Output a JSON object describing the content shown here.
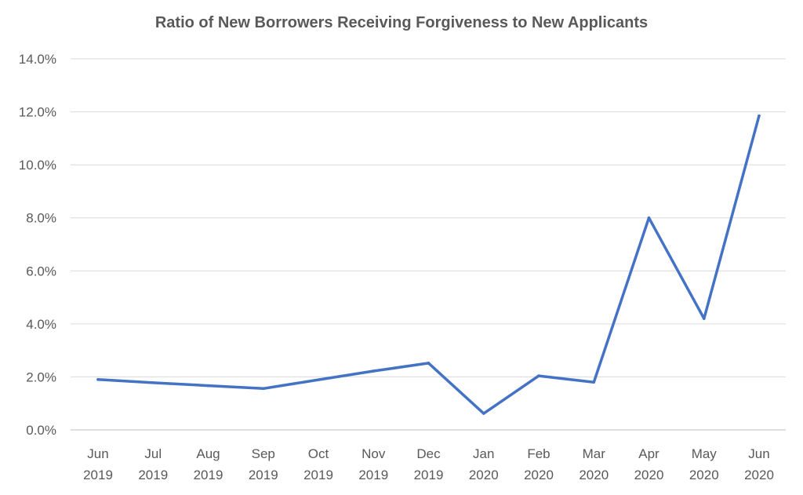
{
  "chart_data": {
    "type": "line",
    "title": "Ratio of New Borrowers Receiving Forgiveness to New Applicants",
    "xlabel": "",
    "ylabel": "",
    "categories": [
      [
        "Jun",
        "2019"
      ],
      [
        "Jul",
        "2019"
      ],
      [
        "Aug",
        "2019"
      ],
      [
        "Sep",
        "2019"
      ],
      [
        "Oct",
        "2019"
      ],
      [
        "Nov",
        "2019"
      ],
      [
        "Dec",
        "2019"
      ],
      [
        "Jan",
        "2020"
      ],
      [
        "Feb",
        "2020"
      ],
      [
        "Mar",
        "2020"
      ],
      [
        "Apr",
        "2020"
      ],
      [
        "May",
        "2020"
      ],
      [
        "Jun",
        "2020"
      ]
    ],
    "series": [
      {
        "color": "#4472c4",
        "values": [
          1.9,
          1.78,
          1.67,
          1.56,
          1.89,
          2.22,
          2.52,
          0.62,
          2.04,
          1.8,
          8.0,
          4.2,
          11.85
        ]
      }
    ],
    "yticks": [
      "0.0%",
      "2.0%",
      "4.0%",
      "6.0%",
      "8.0%",
      "10.0%",
      "12.0%",
      "14.0%"
    ],
    "ylim": [
      0,
      14
    ],
    "y_unit": "%",
    "grid": true,
    "legend": "none"
  }
}
